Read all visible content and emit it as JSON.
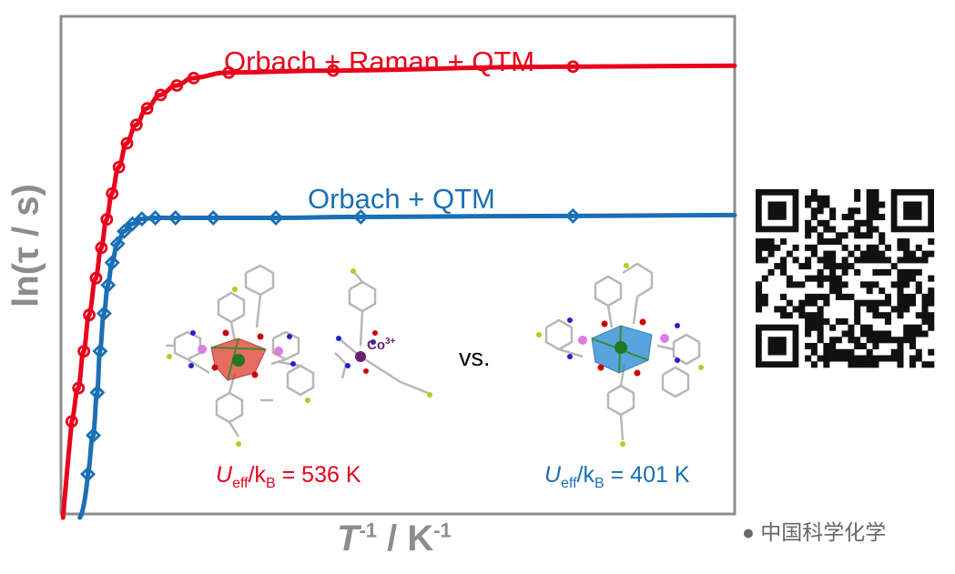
{
  "chart_data": {
    "type": "scatter",
    "xlabel": "T-1 / K-1",
    "xlabel_main": "T",
    "xlabel_sup1": "-1",
    "xlabel_mid": " / K",
    "xlabel_sup2": "-1",
    "ylabel": "ln(τ / s)",
    "x_range": [
      0,
      1
    ],
    "y_range": [
      0,
      1
    ],
    "grid": false,
    "series": [
      {
        "name": "Orbach + Raman + QTM",
        "color": "#e8001c",
        "marker": "circle",
        "x": [
          0.016,
          0.026,
          0.034,
          0.042,
          0.052,
          0.06,
          0.068,
          0.076,
          0.086,
          0.098,
          0.112,
          0.128,
          0.148,
          0.172,
          0.197,
          0.249,
          0.404,
          0.76
        ],
        "y": [
          0.186,
          0.253,
          0.327,
          0.4,
          0.474,
          0.535,
          0.592,
          0.644,
          0.697,
          0.745,
          0.782,
          0.815,
          0.842,
          0.861,
          0.876,
          0.887,
          0.891,
          0.899
        ]
      },
      {
        "name": "Orbach + QTM",
        "color": "#1a6fb5",
        "marker": "diamond",
        "x": [
          0.04,
          0.048,
          0.054,
          0.058,
          0.064,
          0.07,
          0.076,
          0.084,
          0.094,
          0.106,
          0.12,
          0.14,
          0.17,
          0.226,
          0.319,
          0.445,
          0.76
        ],
        "y": [
          0.08,
          0.158,
          0.244,
          0.327,
          0.403,
          0.46,
          0.505,
          0.543,
          0.568,
          0.583,
          0.593,
          0.595,
          0.595,
          0.595,
          0.595,
          0.597,
          0.599
        ]
      }
    ]
  },
  "labels": {
    "series1_title": "Orbach + Raman + QTM",
    "series2_title": "Orbach + QTM",
    "vs": "vs.",
    "co_ion": "Co",
    "co_charge": "3+",
    "ueff_left_U": "U",
    "ueff_left_sub1": "eff",
    "ueff_left_k": "/k",
    "ueff_left_sub2": "B",
    "ueff_left_value": " = 536 K",
    "ueff_right_U": "U",
    "ueff_right_sub1": "eff",
    "ueff_right_k": "/k",
    "ueff_right_sub2": "B",
    "ueff_right_value": " = 401 K",
    "watermark": "中国科学化学"
  },
  "colors": {
    "red": "#e8001c",
    "blue": "#1a6fb5",
    "axis_gray": "#8c8c8c"
  }
}
